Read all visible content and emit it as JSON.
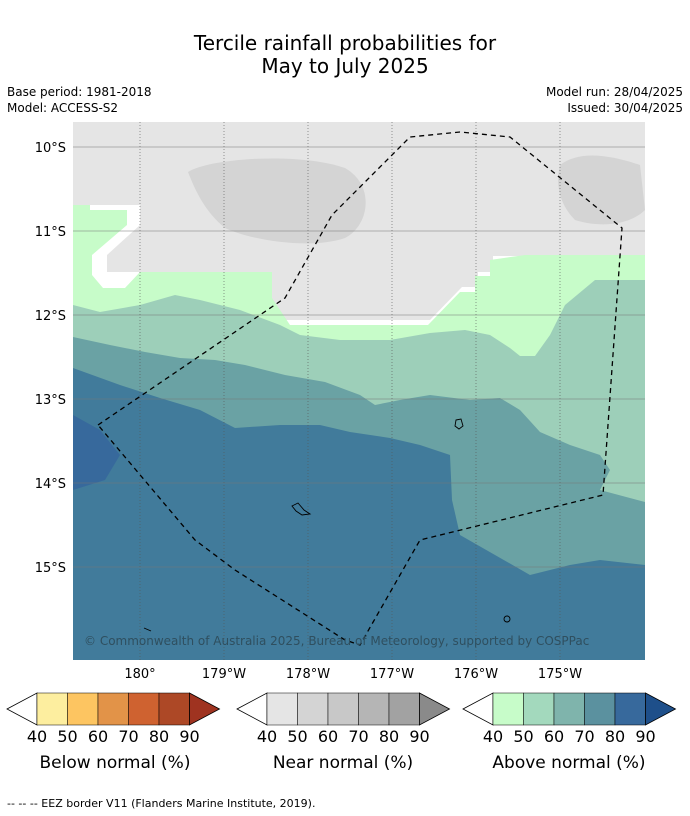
{
  "header": {
    "title_line1": "Tercile rainfall probabilities for",
    "title_line2": "May to July 2025",
    "base_period": "Base period: 1981-2018",
    "model": "Model: ACCESS-S2",
    "model_run": "Model run: 28/04/2025",
    "issued": "Issued: 30/04/2025"
  },
  "map": {
    "lat_labels": [
      "10°S",
      "11°S",
      "12°S",
      "13°S",
      "14°S",
      "15°S"
    ],
    "lon_labels": [
      "180°",
      "179°W",
      "178°W",
      "177°W",
      "176°W",
      "175°W"
    ],
    "copyright": "© Commonwealth of Australia 2025, Bureau of Meteorology, supported by COSPPac",
    "colors": {
      "near40": "#e5e5e5",
      "near50": "#d4d4d4",
      "above40": "#c7fcc9",
      "above50": "#9dcfb9",
      "above60": "#6aa2a4",
      "above70": "#417b9b",
      "above80": "#37699c"
    }
  },
  "colorbars": [
    {
      "label": "Below normal (%)",
      "ticks": [
        "40",
        "50",
        "60",
        "70",
        "80",
        "90"
      ],
      "colors": [
        "#fdee9f",
        "#fdc561",
        "#e29348",
        "#cf6230",
        "#ad4826",
        "#9f3320"
      ]
    },
    {
      "label": "Near normal (%)",
      "ticks": [
        "40",
        "50",
        "60",
        "70",
        "80",
        "90"
      ],
      "colors": [
        "#e5e5e5",
        "#d4d4d4",
        "#c8c8c8",
        "#b5b5b5",
        "#a2a2a2",
        "#8a8a8a"
      ]
    },
    {
      "label": "Above normal (%)",
      "ticks": [
        "40",
        "50",
        "60",
        "70",
        "80",
        "90"
      ],
      "colors": [
        "#c7fcc9",
        "#a3d9bd",
        "#7fb4ac",
        "#5b919f",
        "#37699c",
        "#1e4f8a"
      ]
    }
  ],
  "footer": {
    "legend_line": "-- -- -- EEZ border V11 (Flanders Marine Institute, 2019)."
  }
}
